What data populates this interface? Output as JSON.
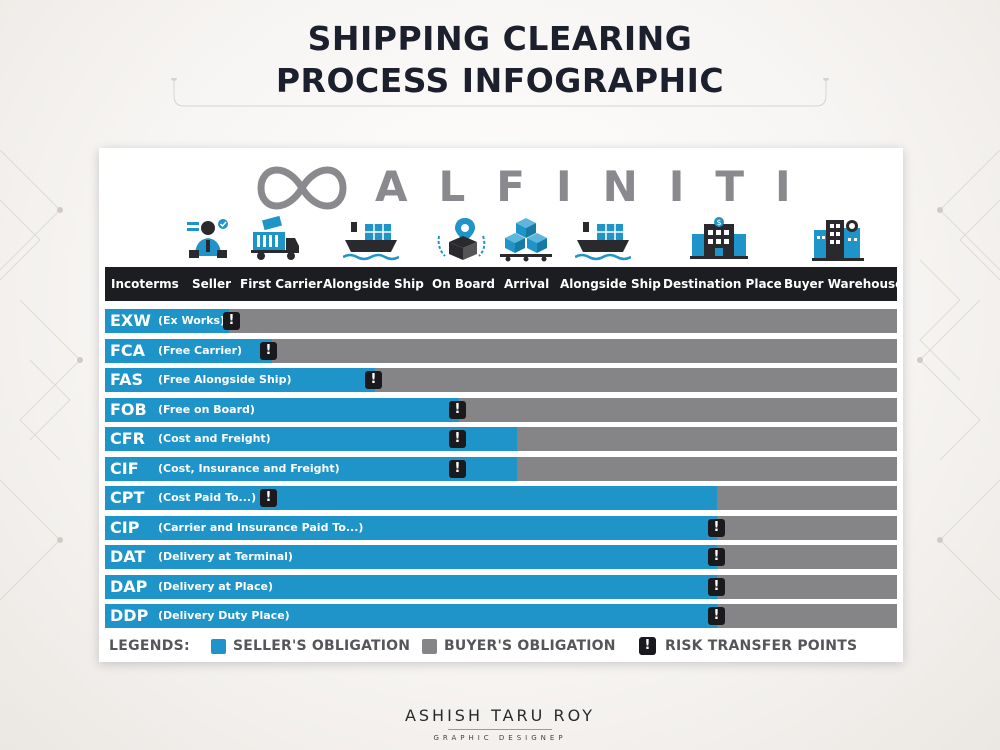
{
  "title": {
    "line1": "SHIPPING CLEARING",
    "line2": "PROCESS INFOGRAPHIC"
  },
  "logo": {
    "mark_icon": "infinity-icon",
    "text": "ALFINITI"
  },
  "stage_icons": [
    "seller-icon",
    "first-carrier-truck-icon",
    "alongside-ship-icon",
    "on-board-icon",
    "arrival-icon",
    "alongside-ship-icon",
    "destination-place-icon",
    "buyer-warehouse-icon"
  ],
  "columns": [
    "Incoterms",
    "Seller",
    "First Carrier",
    "Alongside Ship",
    "On Board",
    "Arrival",
    "Alongside Ship",
    "Destination Place",
    "Buyer Warehouse"
  ],
  "incoterms": [
    {
      "code": "EXW",
      "name": "(Ex Works)",
      "seller_obligation_to": "Seller",
      "risk_transfer_at": "Seller"
    },
    {
      "code": "FCA",
      "name": "(Free Carrier)",
      "seller_obligation_to": "First Carrier",
      "risk_transfer_at": "First Carrier"
    },
    {
      "code": "FAS",
      "name": "(Free Alongside Ship)",
      "seller_obligation_to": "Alongside Ship",
      "risk_transfer_at": "Alongside Ship"
    },
    {
      "code": "FOB",
      "name": "(Free on Board)",
      "seller_obligation_to": "On Board",
      "risk_transfer_at": "On Board"
    },
    {
      "code": "CFR",
      "name": "(Cost and Freight)",
      "seller_obligation_to": "Arrival",
      "risk_transfer_at": "On Board"
    },
    {
      "code": "CIF",
      "name": "(Cost, Insurance and Freight)",
      "seller_obligation_to": "Arrival",
      "risk_transfer_at": "On Board"
    },
    {
      "code": "CPT",
      "name": "(Cost Paid To...)",
      "seller_obligation_to": "Destination Place",
      "risk_transfer_at": "First Carrier"
    },
    {
      "code": "CIP",
      "name": "(Carrier and Insurance Paid To...)",
      "seller_obligation_to": "Destination Place",
      "risk_transfer_at": "Destination Place"
    },
    {
      "code": "DAT",
      "name": "(Delivery at Terminal)",
      "seller_obligation_to": "Destination Place",
      "risk_transfer_at": "Destination Place"
    },
    {
      "code": "DAP",
      "name": "(Delivery at Place)",
      "seller_obligation_to": "Destination Place",
      "risk_transfer_at": "Destination Place"
    },
    {
      "code": "DDP",
      "name": "(Delivery Duty Place)",
      "seller_obligation_to": "Destination Place",
      "risk_transfer_at": "Destination Place"
    }
  ],
  "risk_symbol": "!",
  "legend": {
    "title": "LEGENDS:",
    "seller": "SELLER'S OBLIGATION",
    "buyer": "BUYER'S OBLIGATION",
    "risk": "RISK TRANSFER POINTS"
  },
  "colors": {
    "seller": "#1e94c8",
    "buyer": "#858587",
    "header": "#1c1d21",
    "title": "#1c1f2c",
    "risk": "#1a1a1e"
  },
  "footer": {
    "name": "ASHISH TARU ROY",
    "subtitle": "GRAPHIC DESIGNEP"
  }
}
